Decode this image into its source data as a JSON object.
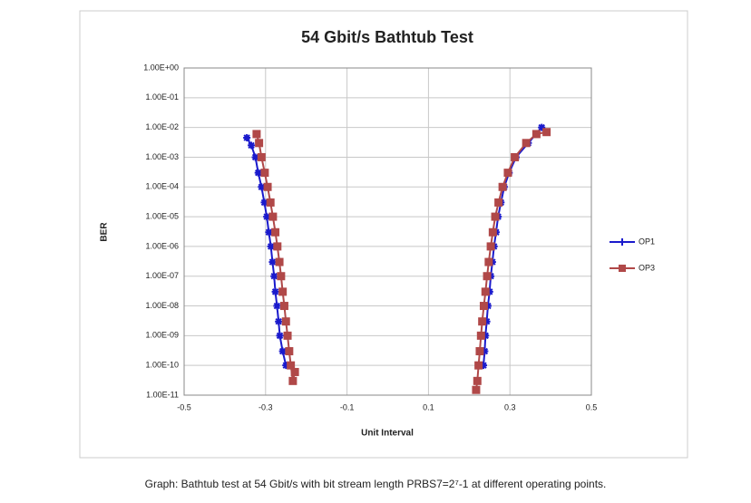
{
  "chart_data": {
    "type": "line",
    "title": "54 Gbit/s Bathtub Test",
    "x_label": "Unit Interval",
    "y_label": "BER",
    "caption": "Graph: Bathtub test at 54 Gbit/s with bit stream length PRBS7=2⁷-1 at different operating points.",
    "log_y": true,
    "grid": true,
    "legend": "right",
    "xlim": [
      -0.5,
      0.5
    ],
    "xticks": [
      -0.5,
      -0.3,
      -0.1,
      0.1,
      0.3,
      0.5
    ],
    "ylim": [
      1e-11,
      1
    ],
    "yticks": [
      {
        "value": 1e-11,
        "label": "1.00E-11"
      },
      {
        "value": 1e-10,
        "label": "1.00E-10"
      },
      {
        "value": 1e-09,
        "label": "1.00E-09"
      },
      {
        "value": 1e-08,
        "label": "1.00E-08"
      },
      {
        "value": 1e-07,
        "label": "1.00E-07"
      },
      {
        "value": 1e-06,
        "label": "1.00E-06"
      },
      {
        "value": 1e-05,
        "label": "1.00E-05"
      },
      {
        "value": 0.0001,
        "label": "1.00E-04"
      },
      {
        "value": 0.001,
        "label": "1.00E-03"
      },
      {
        "value": 0.01,
        "label": "1.00E-02"
      },
      {
        "value": 0.1,
        "label": "1.00E-01"
      },
      {
        "value": 1,
        "label": "1.00E+00"
      }
    ],
    "series": [
      {
        "name": "OP1",
        "color": "#1a1acc",
        "marker": "cross",
        "x": [
          -0.346,
          -0.335,
          -0.325,
          -0.318,
          -0.31,
          -0.303,
          -0.297,
          -0.292,
          -0.287,
          -0.283,
          -0.279,
          -0.276,
          -0.272,
          -0.268,
          -0.265,
          -0.258,
          -0.25,
          null,
          0.235,
          0.238,
          0.24,
          0.243,
          0.246,
          0.25,
          0.253,
          0.257,
          0.261,
          0.266,
          0.271,
          0.278,
          0.286,
          0.298,
          0.315,
          0.345,
          0.378
        ],
        "values": [
          0.0045,
          0.0025,
          0.001,
          0.0003,
          0.0001,
          3e-05,
          1e-05,
          3e-06,
          1e-06,
          3e-07,
          1e-07,
          3e-08,
          1e-08,
          3e-09,
          1e-09,
          3e-10,
          1e-10,
          null,
          1e-10,
          3e-10,
          1e-09,
          3e-09,
          1e-08,
          3e-08,
          1e-07,
          3e-07,
          1e-06,
          3e-06,
          1e-05,
          3e-05,
          0.0001,
          0.0003,
          0.001,
          0.003,
          0.01
        ]
      },
      {
        "name": "OP3",
        "color": "#b04848",
        "marker": "square",
        "x": [
          -0.322,
          -0.316,
          -0.31,
          -0.302,
          -0.295,
          -0.288,
          -0.282,
          -0.276,
          -0.271,
          -0.266,
          -0.262,
          -0.258,
          -0.254,
          -0.25,
          -0.246,
          -0.242,
          -0.238,
          -0.233,
          -0.228,
          null,
          0.217,
          0.22,
          0.223,
          0.226,
          0.229,
          0.232,
          0.236,
          0.24,
          0.244,
          0.248,
          0.253,
          0.258,
          0.264,
          0.272,
          0.282,
          0.295,
          0.312,
          0.34,
          0.365,
          0.39
        ],
        "values": [
          0.006,
          0.003,
          0.001,
          0.0003,
          0.0001,
          3e-05,
          1e-05,
          3e-06,
          1e-06,
          3e-07,
          1e-07,
          3e-08,
          1e-08,
          3e-09,
          1e-09,
          3e-10,
          1e-10,
          3e-11,
          6e-11,
          null,
          1.5e-11,
          3e-11,
          1e-10,
          3e-10,
          1e-09,
          3e-09,
          1e-08,
          3e-08,
          1e-07,
          3e-07,
          1e-06,
          3e-06,
          1e-05,
          3e-05,
          0.0001,
          0.0003,
          0.001,
          0.003,
          0.006,
          0.007
        ]
      }
    ]
  }
}
